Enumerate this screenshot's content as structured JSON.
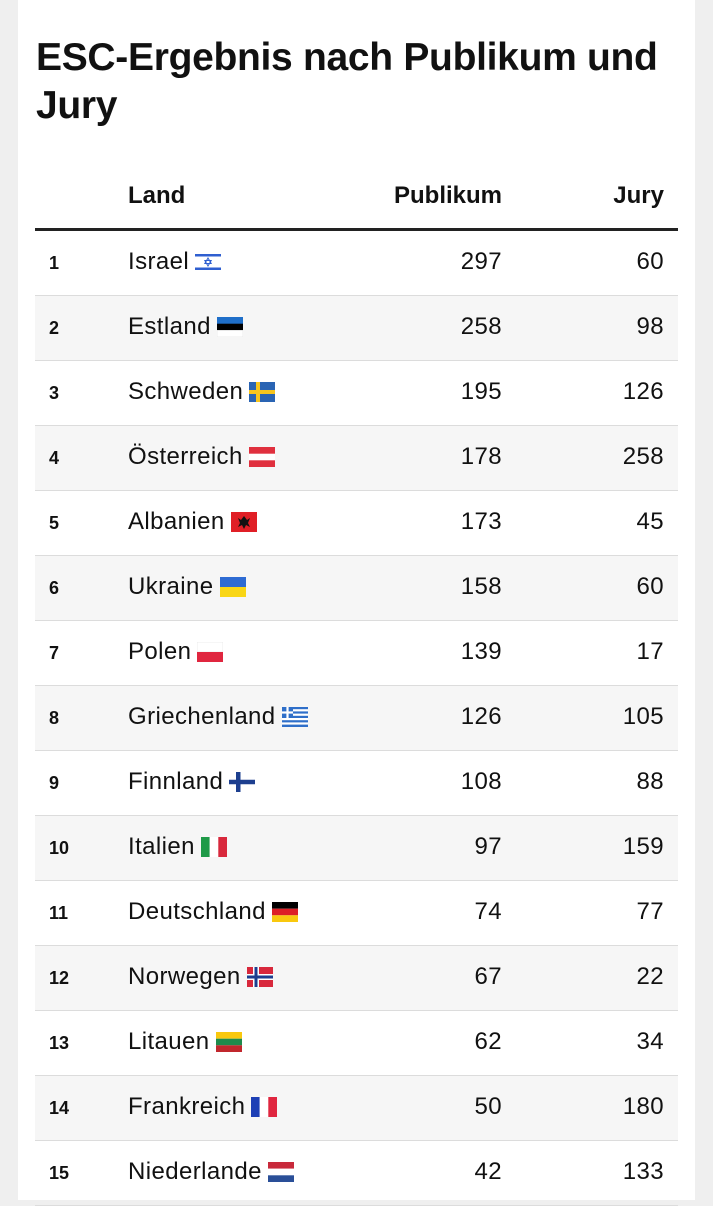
{
  "title": "ESC-Ergebnis nach Publikum und Jury",
  "columns": {
    "rank": "",
    "land": "Land",
    "publikum": "Publikum",
    "jury": "Jury"
  },
  "chart_data": {
    "type": "table",
    "title": "ESC-Ergebnis nach Publikum und Jury",
    "columns": [
      "",
      "Land",
      "Publikum",
      "Jury"
    ],
    "rows": [
      {
        "rank": "1",
        "land": "Israel",
        "flag": "israel-flag-icon",
        "publikum": "297",
        "jury": "60"
      },
      {
        "rank": "2",
        "land": "Estland",
        "flag": "estonia-flag-icon",
        "publikum": "258",
        "jury": "98"
      },
      {
        "rank": "3",
        "land": "Schweden",
        "flag": "sweden-flag-icon",
        "publikum": "195",
        "jury": "126"
      },
      {
        "rank": "4",
        "land": "Österreich",
        "flag": "austria-flag-icon",
        "publikum": "178",
        "jury": "258"
      },
      {
        "rank": "5",
        "land": "Albanien",
        "flag": "albania-flag-icon",
        "publikum": "173",
        "jury": "45"
      },
      {
        "rank": "6",
        "land": "Ukraine",
        "flag": "ukraine-flag-icon",
        "publikum": "158",
        "jury": "60"
      },
      {
        "rank": "7",
        "land": "Polen",
        "flag": "poland-flag-icon",
        "publikum": "139",
        "jury": "17"
      },
      {
        "rank": "8",
        "land": "Griechenland",
        "flag": "greece-flag-icon",
        "publikum": "126",
        "jury": "105"
      },
      {
        "rank": "9",
        "land": "Finnland",
        "flag": "finland-flag-icon",
        "publikum": "108",
        "jury": "88"
      },
      {
        "rank": "10",
        "land": "Italien",
        "flag": "italy-flag-icon",
        "publikum": "97",
        "jury": "159"
      },
      {
        "rank": "11",
        "land": "Deutschland",
        "flag": "germany-flag-icon",
        "publikum": "74",
        "jury": "77"
      },
      {
        "rank": "12",
        "land": "Norwegen",
        "flag": "norway-flag-icon",
        "publikum": "67",
        "jury": "22"
      },
      {
        "rank": "13",
        "land": "Litauen",
        "flag": "lithuania-flag-icon",
        "publikum": "62",
        "jury": "34"
      },
      {
        "rank": "14",
        "land": "Frankreich",
        "flag": "france-flag-icon",
        "publikum": "50",
        "jury": "180"
      },
      {
        "rank": "15",
        "land": "Niederlande",
        "flag": "netherlands-flag-icon",
        "publikum": "42",
        "jury": "133"
      }
    ]
  }
}
